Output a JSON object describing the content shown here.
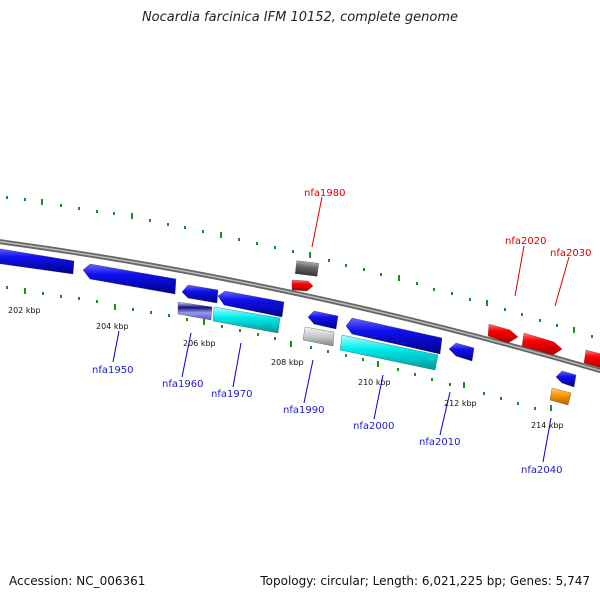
{
  "title": "Nocardia farcinica IFM 10152, complete genome",
  "footer": {
    "accession": "Accession: NC_006361",
    "info": "Topology: circular; Length: 6,021,225 bp; Genes: 5,747"
  },
  "scale_labels": [
    "202 kbp",
    "204 kbp",
    "206 kbp",
    "208 kbp",
    "210 kbp",
    "212 kbp",
    "214 kbp"
  ],
  "genes": [
    {
      "name": "nfa1950",
      "color": "#1a1acc"
    },
    {
      "name": "nfa1960",
      "color": "#1a1acc"
    },
    {
      "name": "nfa1970",
      "color": "#1a1acc"
    },
    {
      "name": "nfa1980",
      "color": "#dd0000"
    },
    {
      "name": "nfa1990",
      "color": "#1a1acc"
    },
    {
      "name": "nfa2000",
      "color": "#1a1acc"
    },
    {
      "name": "nfa2010",
      "color": "#1a1acc"
    },
    {
      "name": "nfa2020",
      "color": "#dd0000"
    },
    {
      "name": "nfa2030",
      "color": "#dd0000"
    },
    {
      "name": "nfa2040",
      "color": "#1a1acc"
    }
  ],
  "colors": {
    "backbone": "#888888",
    "ticks": "#1e8c1e",
    "forward_gene": "#ff0000",
    "reverse_gene": "#0000ff",
    "cyan_feature": "#00e0e0",
    "gray_feature": "#666666",
    "orange_feature": "#ff8c00"
  }
}
